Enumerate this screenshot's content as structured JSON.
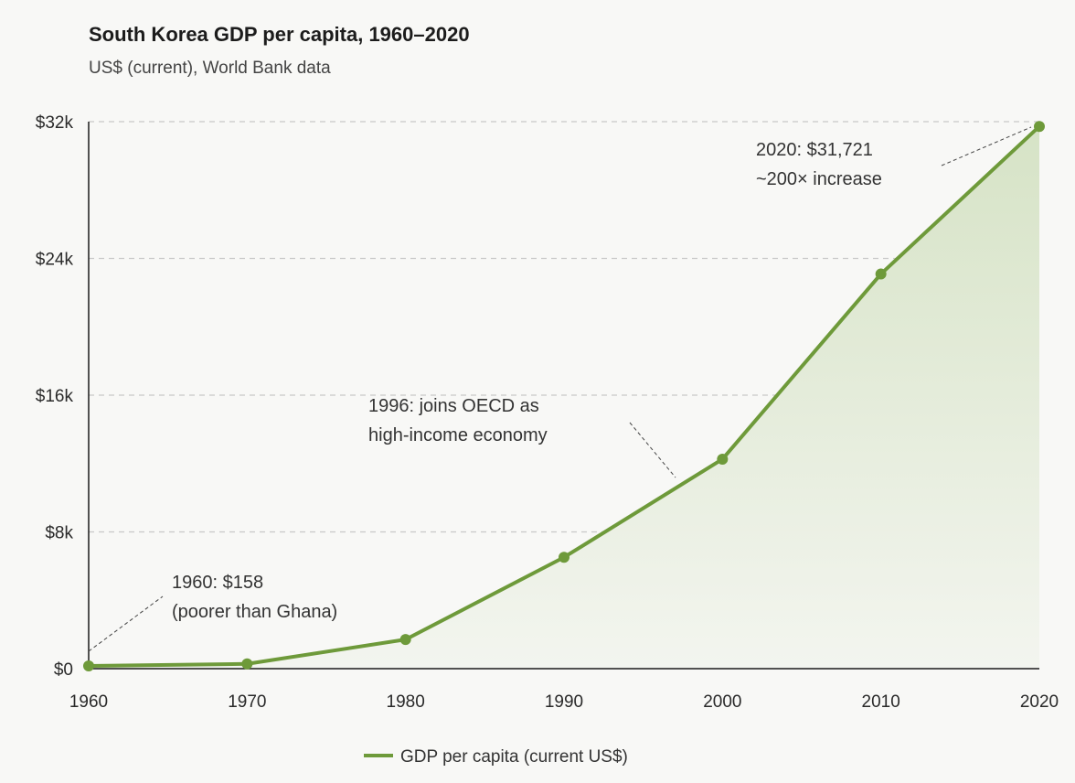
{
  "chart_data": {
    "type": "line",
    "title": "South Korea GDP per capita, 1960–2020",
    "subtitle": "US$ (current), World Bank data",
    "xlabel": "",
    "ylabel": "",
    "x": [
      1960,
      1970,
      1980,
      1990,
      2000,
      2010,
      2020
    ],
    "series": [
      {
        "name": "GDP per capita (current US$)",
        "values": [
          158,
          279,
          1704,
          6516,
          12257,
          23087,
          31721
        ],
        "color": "#6e9a3a"
      }
    ],
    "xlim": [
      1960,
      2020
    ],
    "ylim": [
      0,
      32000
    ],
    "x_ticks": [
      "1960",
      "1970",
      "1980",
      "1990",
      "2000",
      "2010",
      "2020"
    ],
    "y_ticks": [
      {
        "value": 0,
        "label": "$0"
      },
      {
        "value": 8000,
        "label": "$8k"
      },
      {
        "value": 16000,
        "label": "$16k"
      },
      {
        "value": 24000,
        "label": "$24k"
      },
      {
        "value": 32000,
        "label": "$32k"
      }
    ],
    "grid": "horizontal dashed",
    "area_fill": true,
    "legend_position": "bottom",
    "annotations": [
      {
        "x": 1960,
        "y": 158,
        "lines": [
          "1960: $158",
          "(poorer than Ghana)"
        ]
      },
      {
        "x": 1996,
        "y": 10000,
        "lines": [
          "1996: joins OECD as",
          "high-income economy"
        ]
      },
      {
        "x": 2020,
        "y": 31721,
        "lines": [
          "2020: $31,721",
          "~200× increase"
        ]
      }
    ]
  }
}
